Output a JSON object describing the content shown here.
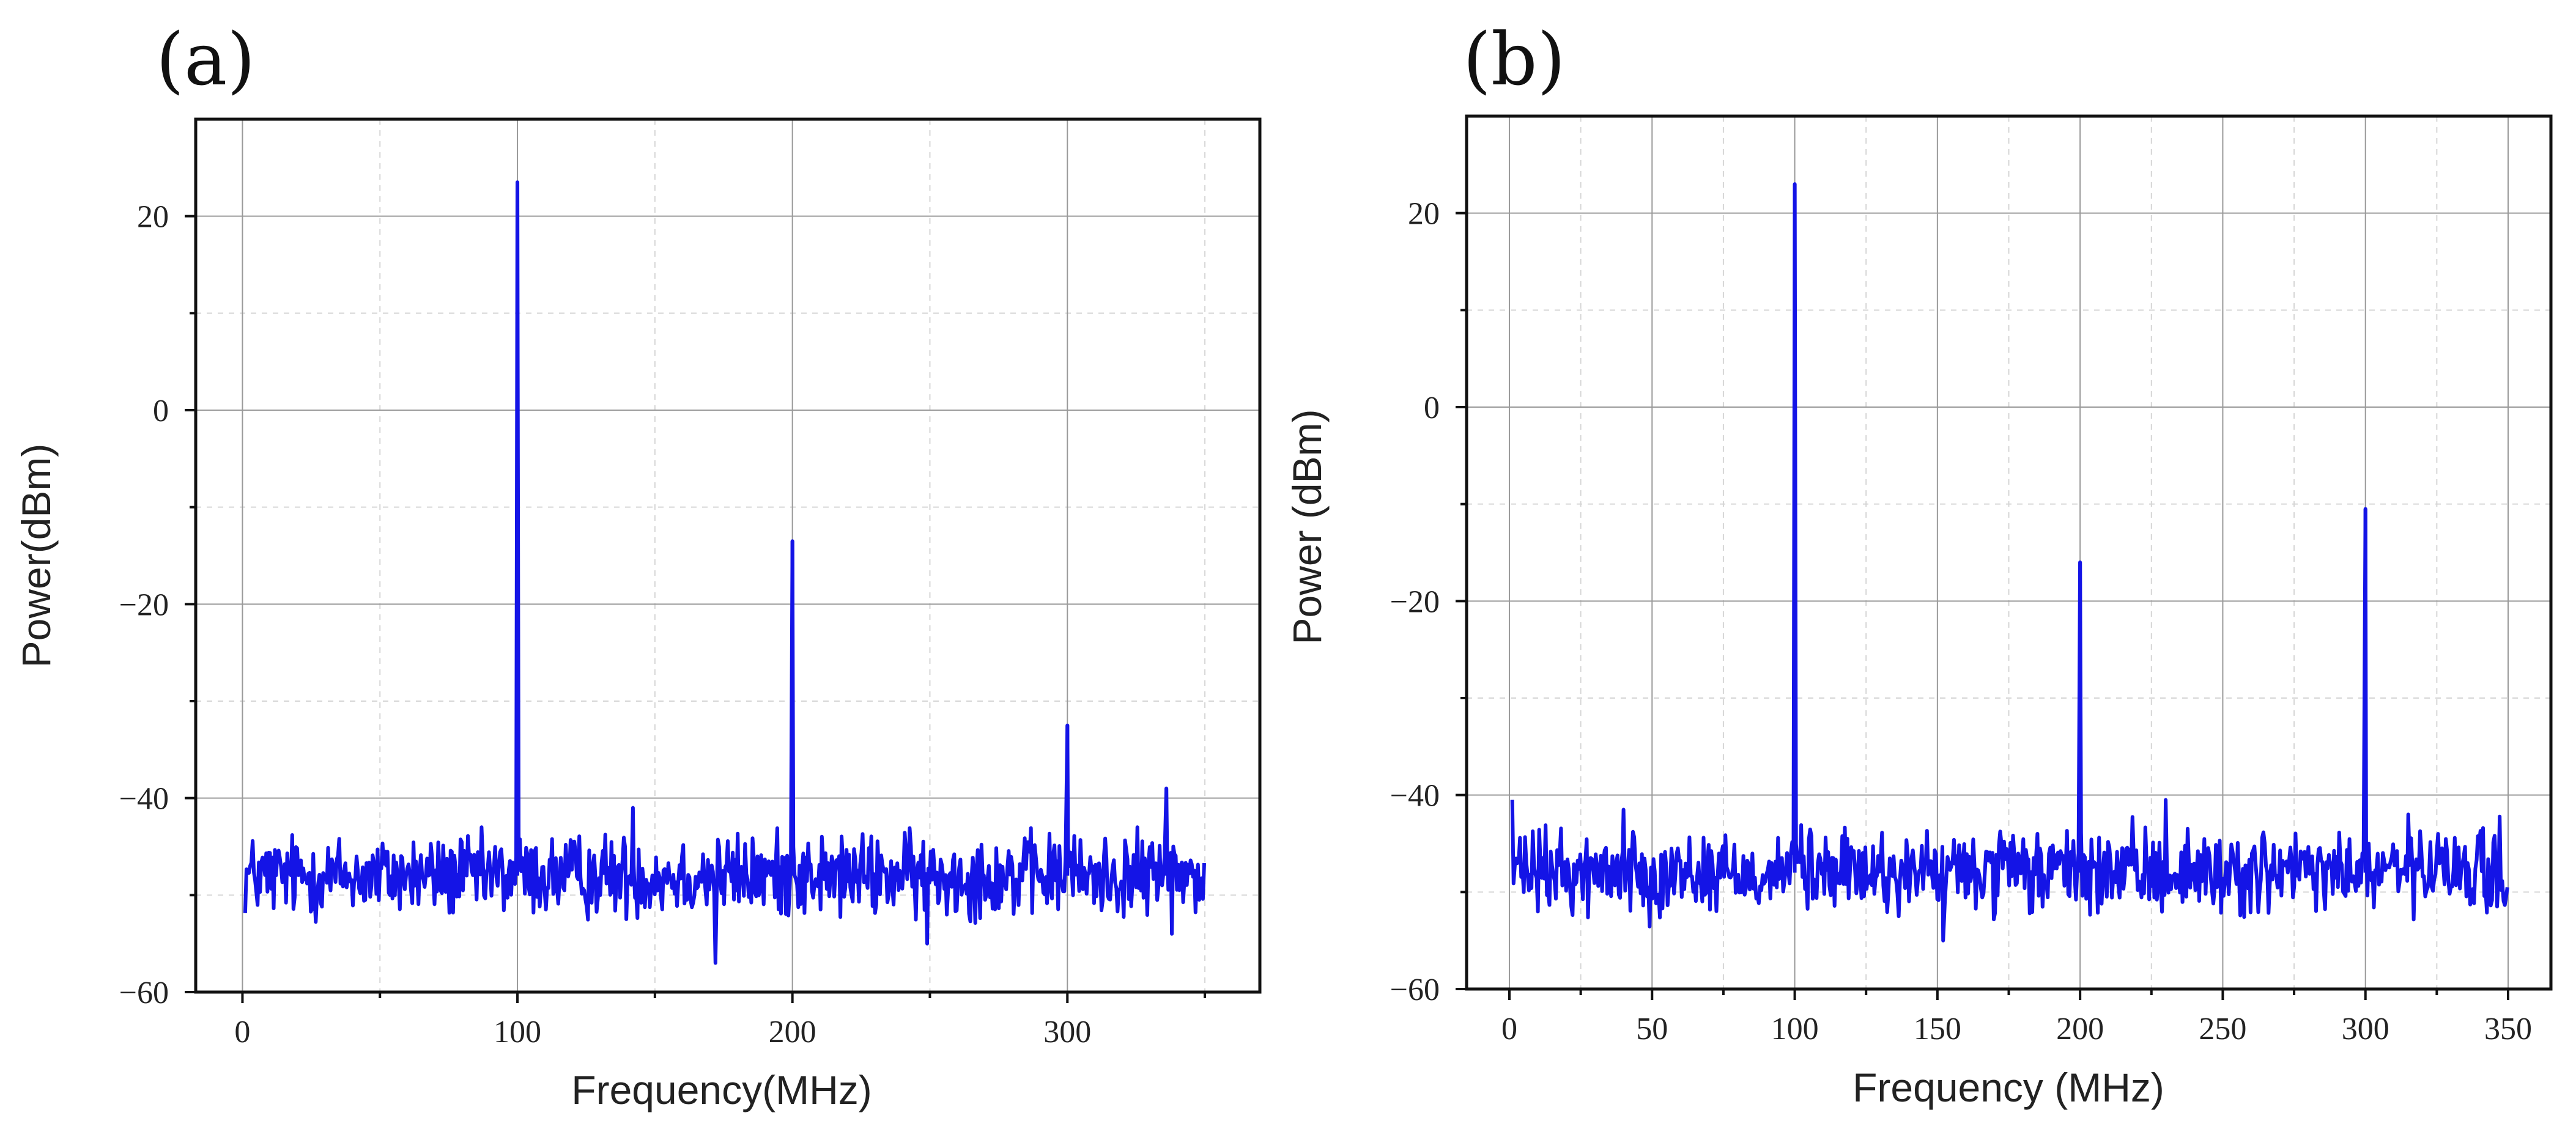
{
  "chart_data": [
    {
      "type": "line",
      "panel_label": "(a)",
      "xlabel": "Frequency(MHz)",
      "ylabel": "Power(dBm)",
      "xlim": [
        -17,
        370
      ],
      "ylim": [
        -60,
        30
      ],
      "xticks": [
        0,
        100,
        200,
        300
      ],
      "xtick_labels": [
        "0",
        "100",
        "200",
        "300"
      ],
      "yticks": [
        20,
        0,
        -20,
        -40,
        -60
      ],
      "ytick_labels": [
        "20",
        "0",
        "−20",
        "−40",
        "−60"
      ],
      "grid": true,
      "series": [
        {
          "name": "spectrum",
          "color": "#1414e6",
          "x_start": 1,
          "x_end": 350,
          "noise_floor": -48,
          "noise_low": -57,
          "noise_high": -43,
          "peaks": [
            {
              "x": 100,
              "y": 23.5
            },
            {
              "x": 200,
              "y": -13.5
            },
            {
              "x": 300,
              "y": -32.5
            },
            {
              "x": 336,
              "y": -39
            }
          ],
          "spikes": [
            {
              "x": 142,
              "y": -41
            },
            {
              "x": 172,
              "y": -57
            },
            {
              "x": 249,
              "y": -55
            },
            {
              "x": 338,
              "y": -54
            }
          ]
        }
      ]
    },
    {
      "type": "line",
      "panel_label": "(b)",
      "xlabel": "Frequency (MHz)",
      "ylabel": "Power (dBm)",
      "xlim": [
        -15,
        365
      ],
      "ylim": [
        -60,
        30
      ],
      "xticks": [
        0,
        50,
        100,
        150,
        200,
        250,
        300,
        350
      ],
      "xtick_labels": [
        "0",
        "50",
        "100",
        "150",
        "200",
        "250",
        "300",
        "350"
      ],
      "yticks": [
        20,
        0,
        -20,
        -40,
        -60
      ],
      "ytick_labels": [
        "20",
        "0",
        "−20",
        "−40",
        "−60"
      ],
      "grid": true,
      "series": [
        {
          "name": "spectrum",
          "color": "#1414e6",
          "x_start": 1,
          "x_end": 350,
          "noise_floor": -48,
          "noise_low": -56,
          "noise_high": -41,
          "peaks": [
            {
              "x": 100,
              "y": 23
            },
            {
              "x": 200,
              "y": -16
            },
            {
              "x": 300,
              "y": -10.5
            }
          ],
          "spikes": [
            {
              "x": 1,
              "y": -40.5
            },
            {
              "x": 40,
              "y": -41.5
            },
            {
              "x": 152,
              "y": -55
            },
            {
              "x": 230,
              "y": -40.5
            },
            {
              "x": 315,
              "y": -42
            }
          ]
        }
      ]
    }
  ]
}
